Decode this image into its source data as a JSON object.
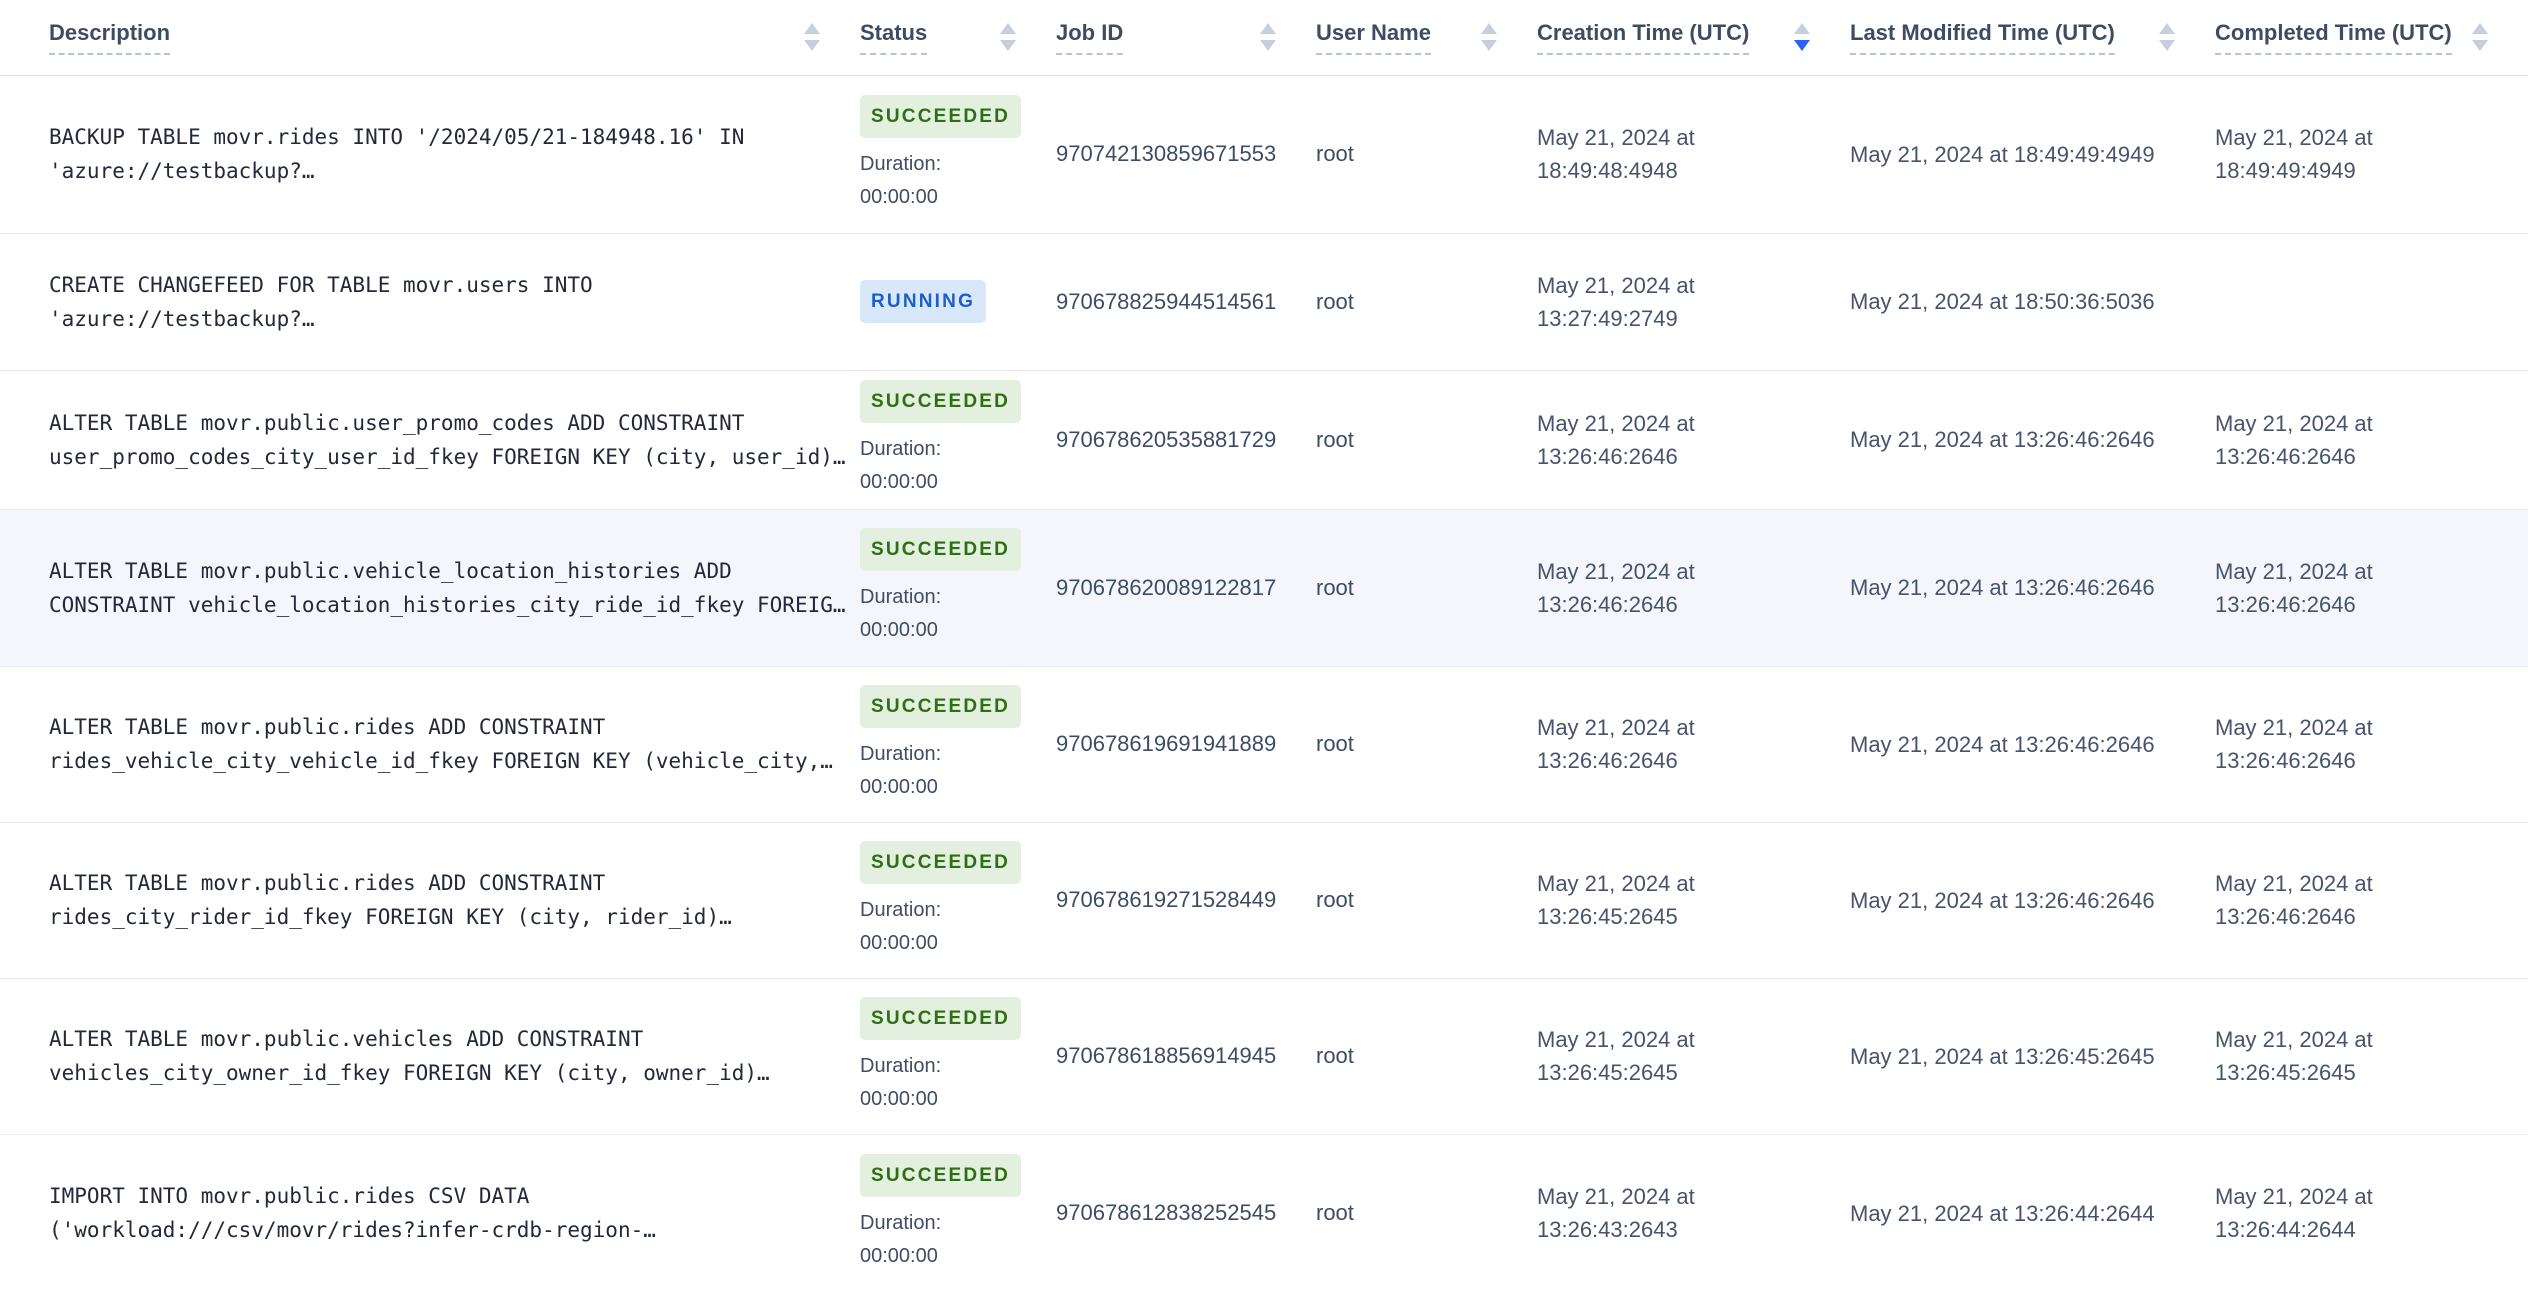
{
  "colors": {
    "sort_idle": "#c7cedd",
    "sort_active": "#2962ff",
    "succeeded_bg": "#e3efdf",
    "succeeded_text": "#2f6f13",
    "running_bg": "#d9e7fa",
    "running_text": "#1d5fc7",
    "highlight_bg": "#f4f6fb"
  },
  "table": {
    "columns": [
      {
        "label": "Description",
        "sort": "none"
      },
      {
        "label": "Status",
        "sort": "none"
      },
      {
        "label": "Job ID",
        "sort": "none"
      },
      {
        "label": "User Name",
        "sort": "none"
      },
      {
        "label": "Creation Time (UTC)",
        "sort": "desc"
      },
      {
        "label": "Last Modified Time (UTC)",
        "sort": "none"
      },
      {
        "label": "Completed Time (UTC)",
        "sort": "none"
      }
    ],
    "rows": [
      {
        "description_lines": [
          "BACKUP TABLE movr.rides INTO '/2024/05/21-184948.16' IN",
          "'azure://testbackup?…"
        ],
        "status": "SUCCEEDED",
        "duration_label": "Duration:",
        "duration_value": "00:00:00",
        "job_id": "970742130859671553",
        "user_name": "root",
        "creation_time": "May 21, 2024 at 18:49:48:4948",
        "last_modified_time": "May 21, 2024 at 18:49:49:4949",
        "completed_time": "May 21, 2024 at 18:49:49:4949",
        "highlighted": false
      },
      {
        "description_lines": [
          "CREATE CHANGEFEED FOR TABLE movr.users INTO",
          "'azure://testbackup?…"
        ],
        "status": "RUNNING",
        "duration_label": "",
        "duration_value": "",
        "job_id": "970678825944514561",
        "user_name": "root",
        "creation_time": "May 21, 2024 at 13:27:49:2749",
        "last_modified_time": "May 21, 2024 at 18:50:36:5036",
        "completed_time": "",
        "highlighted": false
      },
      {
        "description_lines": [
          "ALTER TABLE movr.public.user_promo_codes ADD CONSTRAINT",
          "user_promo_codes_city_user_id_fkey FOREIGN KEY (city, user_id)…"
        ],
        "status": "SUCCEEDED",
        "duration_label": "Duration:",
        "duration_value": "00:00:00",
        "job_id": "970678620535881729",
        "user_name": "root",
        "creation_time": "May 21, 2024 at 13:26:46:2646",
        "last_modified_time": "May 21, 2024 at 13:26:46:2646",
        "completed_time": "May 21, 2024 at 13:26:46:2646",
        "highlighted": false
      },
      {
        "description_lines": [
          "ALTER TABLE movr.public.vehicle_location_histories ADD",
          "CONSTRAINT vehicle_location_histories_city_ride_id_fkey FOREIG…"
        ],
        "status": "SUCCEEDED",
        "duration_label": "Duration:",
        "duration_value": "00:00:00",
        "job_id": "970678620089122817",
        "user_name": "root",
        "creation_time": "May 21, 2024 at 13:26:46:2646",
        "last_modified_time": "May 21, 2024 at 13:26:46:2646",
        "completed_time": "May 21, 2024 at 13:26:46:2646",
        "highlighted": true
      },
      {
        "description_lines": [
          "ALTER TABLE movr.public.rides ADD CONSTRAINT",
          "rides_vehicle_city_vehicle_id_fkey FOREIGN KEY (vehicle_city,…"
        ],
        "status": "SUCCEEDED",
        "duration_label": "Duration:",
        "duration_value": "00:00:00",
        "job_id": "970678619691941889",
        "user_name": "root",
        "creation_time": "May 21, 2024 at 13:26:46:2646",
        "last_modified_time": "May 21, 2024 at 13:26:46:2646",
        "completed_time": "May 21, 2024 at 13:26:46:2646",
        "highlighted": false
      },
      {
        "description_lines": [
          "ALTER TABLE movr.public.rides ADD CONSTRAINT",
          "rides_city_rider_id_fkey FOREIGN KEY (city, rider_id)…"
        ],
        "status": "SUCCEEDED",
        "duration_label": "Duration:",
        "duration_value": "00:00:00",
        "job_id": "970678619271528449",
        "user_name": "root",
        "creation_time": "May 21, 2024 at 13:26:45:2645",
        "last_modified_time": "May 21, 2024 at 13:26:46:2646",
        "completed_time": "May 21, 2024 at 13:26:46:2646",
        "highlighted": false
      },
      {
        "description_lines": [
          "ALTER TABLE movr.public.vehicles ADD CONSTRAINT",
          "vehicles_city_owner_id_fkey FOREIGN KEY (city, owner_id)…"
        ],
        "status": "SUCCEEDED",
        "duration_label": "Duration:",
        "duration_value": "00:00:00",
        "job_id": "970678618856914945",
        "user_name": "root",
        "creation_time": "May 21, 2024 at 13:26:45:2645",
        "last_modified_time": "May 21, 2024 at 13:26:45:2645",
        "completed_time": "May 21, 2024 at 13:26:45:2645",
        "highlighted": false
      },
      {
        "description_lines": [
          "IMPORT INTO movr.public.rides CSV DATA",
          "('workload:///csv/movr/rides?infer-crdb-region-…"
        ],
        "status": "SUCCEEDED",
        "duration_label": "Duration:",
        "duration_value": "00:00:00",
        "job_id": "970678612838252545",
        "user_name": "root",
        "creation_time": "May 21, 2024 at 13:26:43:2643",
        "last_modified_time": "May 21, 2024 at 13:26:44:2644",
        "completed_time": "May 21, 2024 at 13:26:44:2644",
        "highlighted": false
      }
    ]
  }
}
